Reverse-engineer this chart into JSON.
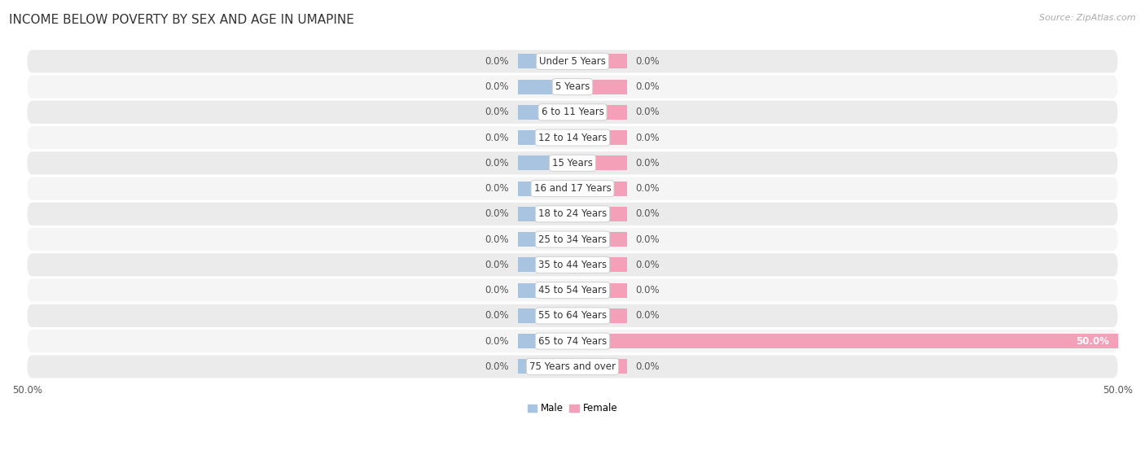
{
  "title": "INCOME BELOW POVERTY BY SEX AND AGE IN UMAPINE",
  "source": "Source: ZipAtlas.com",
  "categories": [
    "Under 5 Years",
    "5 Years",
    "6 to 11 Years",
    "12 to 14 Years",
    "15 Years",
    "16 and 17 Years",
    "18 to 24 Years",
    "25 to 34 Years",
    "35 to 44 Years",
    "45 to 54 Years",
    "55 to 64 Years",
    "65 to 74 Years",
    "75 Years and over"
  ],
  "male_values": [
    0.0,
    0.0,
    0.0,
    0.0,
    0.0,
    0.0,
    0.0,
    0.0,
    0.0,
    0.0,
    0.0,
    0.0,
    0.0
  ],
  "female_values": [
    0.0,
    0.0,
    0.0,
    0.0,
    0.0,
    0.0,
    0.0,
    0.0,
    0.0,
    0.0,
    0.0,
    50.0,
    0.0
  ],
  "male_color": "#a8c4e0",
  "female_color": "#f4a0b8",
  "male_label": "Male",
  "female_label": "Female",
  "axis_max": 50.0,
  "background_color": "#ffffff",
  "row_bg_odd": "#ebebeb",
  "row_bg_even": "#f5f5f5",
  "title_fontsize": 11,
  "label_fontsize": 8.5,
  "tick_fontsize": 8.5,
  "source_fontsize": 8,
  "min_bar_width": 5.0,
  "cat_label_fontsize": 8.5
}
